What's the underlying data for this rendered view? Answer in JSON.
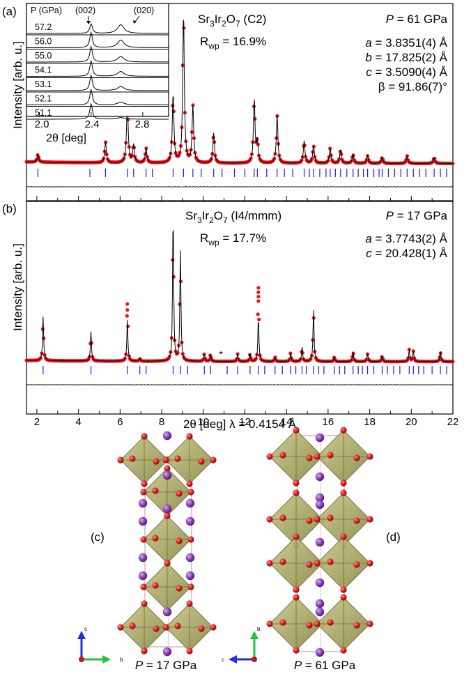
{
  "chart_data": [
    {
      "panel": "(a)",
      "type": "line",
      "title_formula": "Sr3Ir2O7 (C2)",
      "title_parts": {
        "base": "Sr",
        "s1": "3",
        "mid": "Ir",
        "s2": "2",
        "end": "O",
        "s3": "7",
        "suffix": " (C2)"
      },
      "rwp_label": "R",
      "rwp_sub": "wp",
      "rwp_value": " = 16.9%",
      "pressure_label": "P",
      "pressure_value": " = 61 GPa",
      "lattice": [
        {
          "sym": "a",
          "val": " = 3.8351(4) Å"
        },
        {
          "sym": "b",
          "val": " = 17.825(2) Å"
        },
        {
          "sym": "c",
          "val": " = 3.5090(4) Å"
        },
        {
          "sym": "β",
          "val": " = 91.86(7)°"
        }
      ],
      "ylabel": "Intensity [arb. u.]",
      "xlim": [
        1.5,
        22
      ],
      "peaks": [
        [
          2.05,
          0.05
        ],
        [
          5.3,
          0.14
        ],
        [
          6.35,
          0.42
        ],
        [
          6.65,
          0.12
        ],
        [
          7.25,
          0.1
        ],
        [
          8.55,
          0.46
        ],
        [
          9.05,
          1.0
        ],
        [
          9.5,
          0.38
        ],
        [
          10.5,
          0.2
        ],
        [
          12.45,
          0.42
        ],
        [
          12.6,
          0.14
        ],
        [
          13.55,
          0.32
        ],
        [
          14.85,
          0.15
        ],
        [
          15.3,
          0.12
        ],
        [
          16.1,
          0.1
        ],
        [
          16.6,
          0.09
        ],
        [
          17.2,
          0.06
        ],
        [
          17.9,
          0.05
        ],
        [
          18.6,
          0.04
        ],
        [
          19.8,
          0.05
        ],
        [
          21.1,
          0.04
        ]
      ],
      "tick_marks": [
        2.05,
        4.55,
        5.3,
        6.35,
        6.65,
        7.25,
        7.55,
        8.55,
        9.05,
        9.5,
        9.9,
        10.5,
        10.9,
        11.5,
        12.0,
        12.45,
        12.6,
        13.05,
        13.55,
        13.9,
        14.3,
        14.85,
        15.1,
        15.3,
        15.6,
        15.9,
        16.1,
        16.35,
        16.6,
        16.9,
        17.2,
        17.45,
        17.7,
        17.9,
        18.2,
        18.45,
        18.6,
        18.9,
        19.2,
        19.5,
        19.8,
        20.1,
        20.4,
        20.7,
        21.1,
        21.4,
        21.7
      ],
      "inset": {
        "header_p": "P (GPa)",
        "label_002": "(002)",
        "label_020": "(020)",
        "xlabel": "2θ [deg]",
        "xticks": [
          "2.0",
          "2.4",
          "2.8"
        ],
        "xlim": [
          1.9,
          3.0
        ],
        "pressures": [
          "57.2",
          "56.0",
          "55.0",
          "54.1",
          "53.1",
          "52.1",
          "51.1"
        ],
        "peak_020": [
          1.0,
          0.55,
          0.4,
          0.35,
          0.3,
          0.2,
          0.12
        ]
      }
    },
    {
      "panel": "(b)",
      "type": "line",
      "title_parts": {
        "base": "Sr",
        "s1": "3",
        "mid": "Ir",
        "s2": "2",
        "end": "O",
        "s3": "7",
        "suffix": " (I4/mmm)"
      },
      "rwp_label": "R",
      "rwp_sub": "wp",
      "rwp_value": " = 17.7%",
      "pressure_label": "P",
      "pressure_value": " = 17 GPa",
      "lattice": [
        {
          "sym": "a",
          "val": " = 3.7743(2) Å"
        },
        {
          "sym": "c",
          "val": " = 20.428(1) Å"
        }
      ],
      "ylabel": "Intensity [arb. u.]",
      "xlabel": "2θ [deg]  λ = 0.4154 Å",
      "xticks": [
        "2",
        "4",
        "6",
        "8",
        "10",
        "12",
        "14",
        "16",
        "18",
        "20",
        "22"
      ],
      "xlim": [
        1.5,
        22
      ],
      "star_label": "*",
      "star_x": 10.85,
      "peaks": [
        [
          2.3,
          0.3
        ],
        [
          4.6,
          0.2
        ],
        [
          6.35,
          0.28
        ],
        [
          6.95,
          0.02
        ],
        [
          8.55,
          1.0
        ],
        [
          8.9,
          0.75
        ],
        [
          10.05,
          0.05
        ],
        [
          10.35,
          0.05
        ],
        [
          11.65,
          0.05
        ],
        [
          12.25,
          0.05
        ],
        [
          12.65,
          0.3
        ],
        [
          13.45,
          0.03
        ],
        [
          14.2,
          0.06
        ],
        [
          14.75,
          0.1
        ],
        [
          15.3,
          0.35
        ],
        [
          16.3,
          0.03
        ],
        [
          17.2,
          0.07
        ],
        [
          17.9,
          0.05
        ],
        [
          18.6,
          0.04
        ],
        [
          19.9,
          0.08
        ],
        [
          20.1,
          0.07
        ],
        [
          21.4,
          0.07
        ]
      ],
      "obs_boost": [
        [
          6.35,
          0.1
        ],
        [
          12.65,
          0.12
        ],
        [
          8.55,
          0.02
        ]
      ],
      "tick_marks": [
        2.3,
        4.6,
        6.35,
        6.95,
        7.25,
        8.55,
        8.9,
        9.25,
        10.05,
        10.35,
        11.15,
        11.65,
        12.25,
        12.65,
        12.95,
        13.45,
        13.8,
        14.2,
        14.45,
        14.75,
        14.95,
        15.3,
        15.55,
        15.8,
        16.3,
        16.55,
        16.8,
        17.2,
        17.45,
        17.65,
        17.9,
        18.2,
        18.6,
        18.85,
        19.15,
        19.45,
        19.9,
        20.1,
        20.35,
        20.6,
        21.0,
        21.4,
        21.7
      ]
    }
  ],
  "structures": [
    {
      "panel": "(c)",
      "caption_sym": "P",
      "caption_val": " = 17 GPa",
      "axes": {
        "up": "c",
        "right": "b"
      }
    },
    {
      "panel": "(d)",
      "caption_sym": "P",
      "caption_val": " = 61 GPa",
      "axes": {
        "up": "b",
        "left": "c"
      }
    }
  ],
  "colors": {
    "observed": "#e8141a",
    "calculated": "#000000",
    "ticks": "#1a1ae6",
    "octahedron": "#a8a75c",
    "oxygen": "#d91f1f",
    "strontium": "#8e3fb8"
  }
}
